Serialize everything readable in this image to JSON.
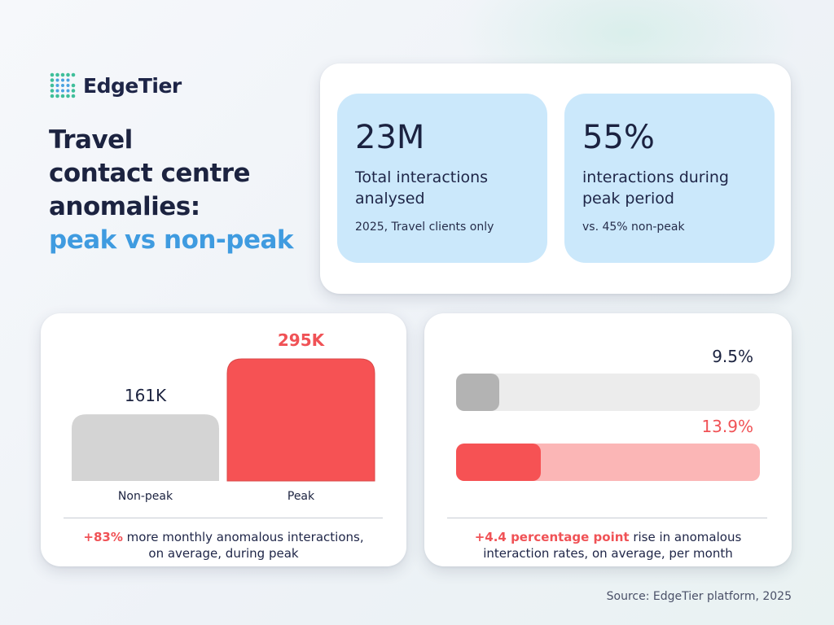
{
  "brand": {
    "name": "EdgeTier"
  },
  "headline": {
    "line1": "Travel",
    "line2": "contact centre",
    "line3": "anomalies:",
    "line4": "peak vs non-peak"
  },
  "stats": [
    {
      "value": "23M",
      "label_line1": "Total interactions",
      "label_line2": "analysed",
      "note": "2025, Travel clients only"
    },
    {
      "value": "55%",
      "label_line1": "interactions during",
      "label_line2": "peak period",
      "note": "vs. 45% non-peak"
    }
  ],
  "chart_data": [
    {
      "type": "bar",
      "categories": [
        "Non-peak",
        "Peak"
      ],
      "values": [
        161,
        295
      ],
      "value_labels": [
        "161K",
        "295K"
      ],
      "colors": [
        "#d4d4d4",
        "#f65254"
      ],
      "caption_highlight": "+83%",
      "caption_rest_line1": " more monthly anomalous interactions,",
      "caption_line2": "on average, during peak"
    },
    {
      "type": "bar",
      "orientation": "horizontal",
      "values": [
        9.5,
        13.9
      ],
      "value_labels": [
        "9.5%",
        "13.9%"
      ],
      "colors": [
        "#b3b3b3",
        "#f65254"
      ],
      "track_colors": [
        "#ececec",
        "#fbb6b6"
      ],
      "label_colors": [
        "#1c2340",
        "#f05256"
      ],
      "caption_highlight": "+4.4 percentage point",
      "caption_rest_line1": " rise in anomalous",
      "caption_line2": "interaction rates, on average, per month"
    }
  ],
  "source": "Source: EdgeTier platform, 2025"
}
